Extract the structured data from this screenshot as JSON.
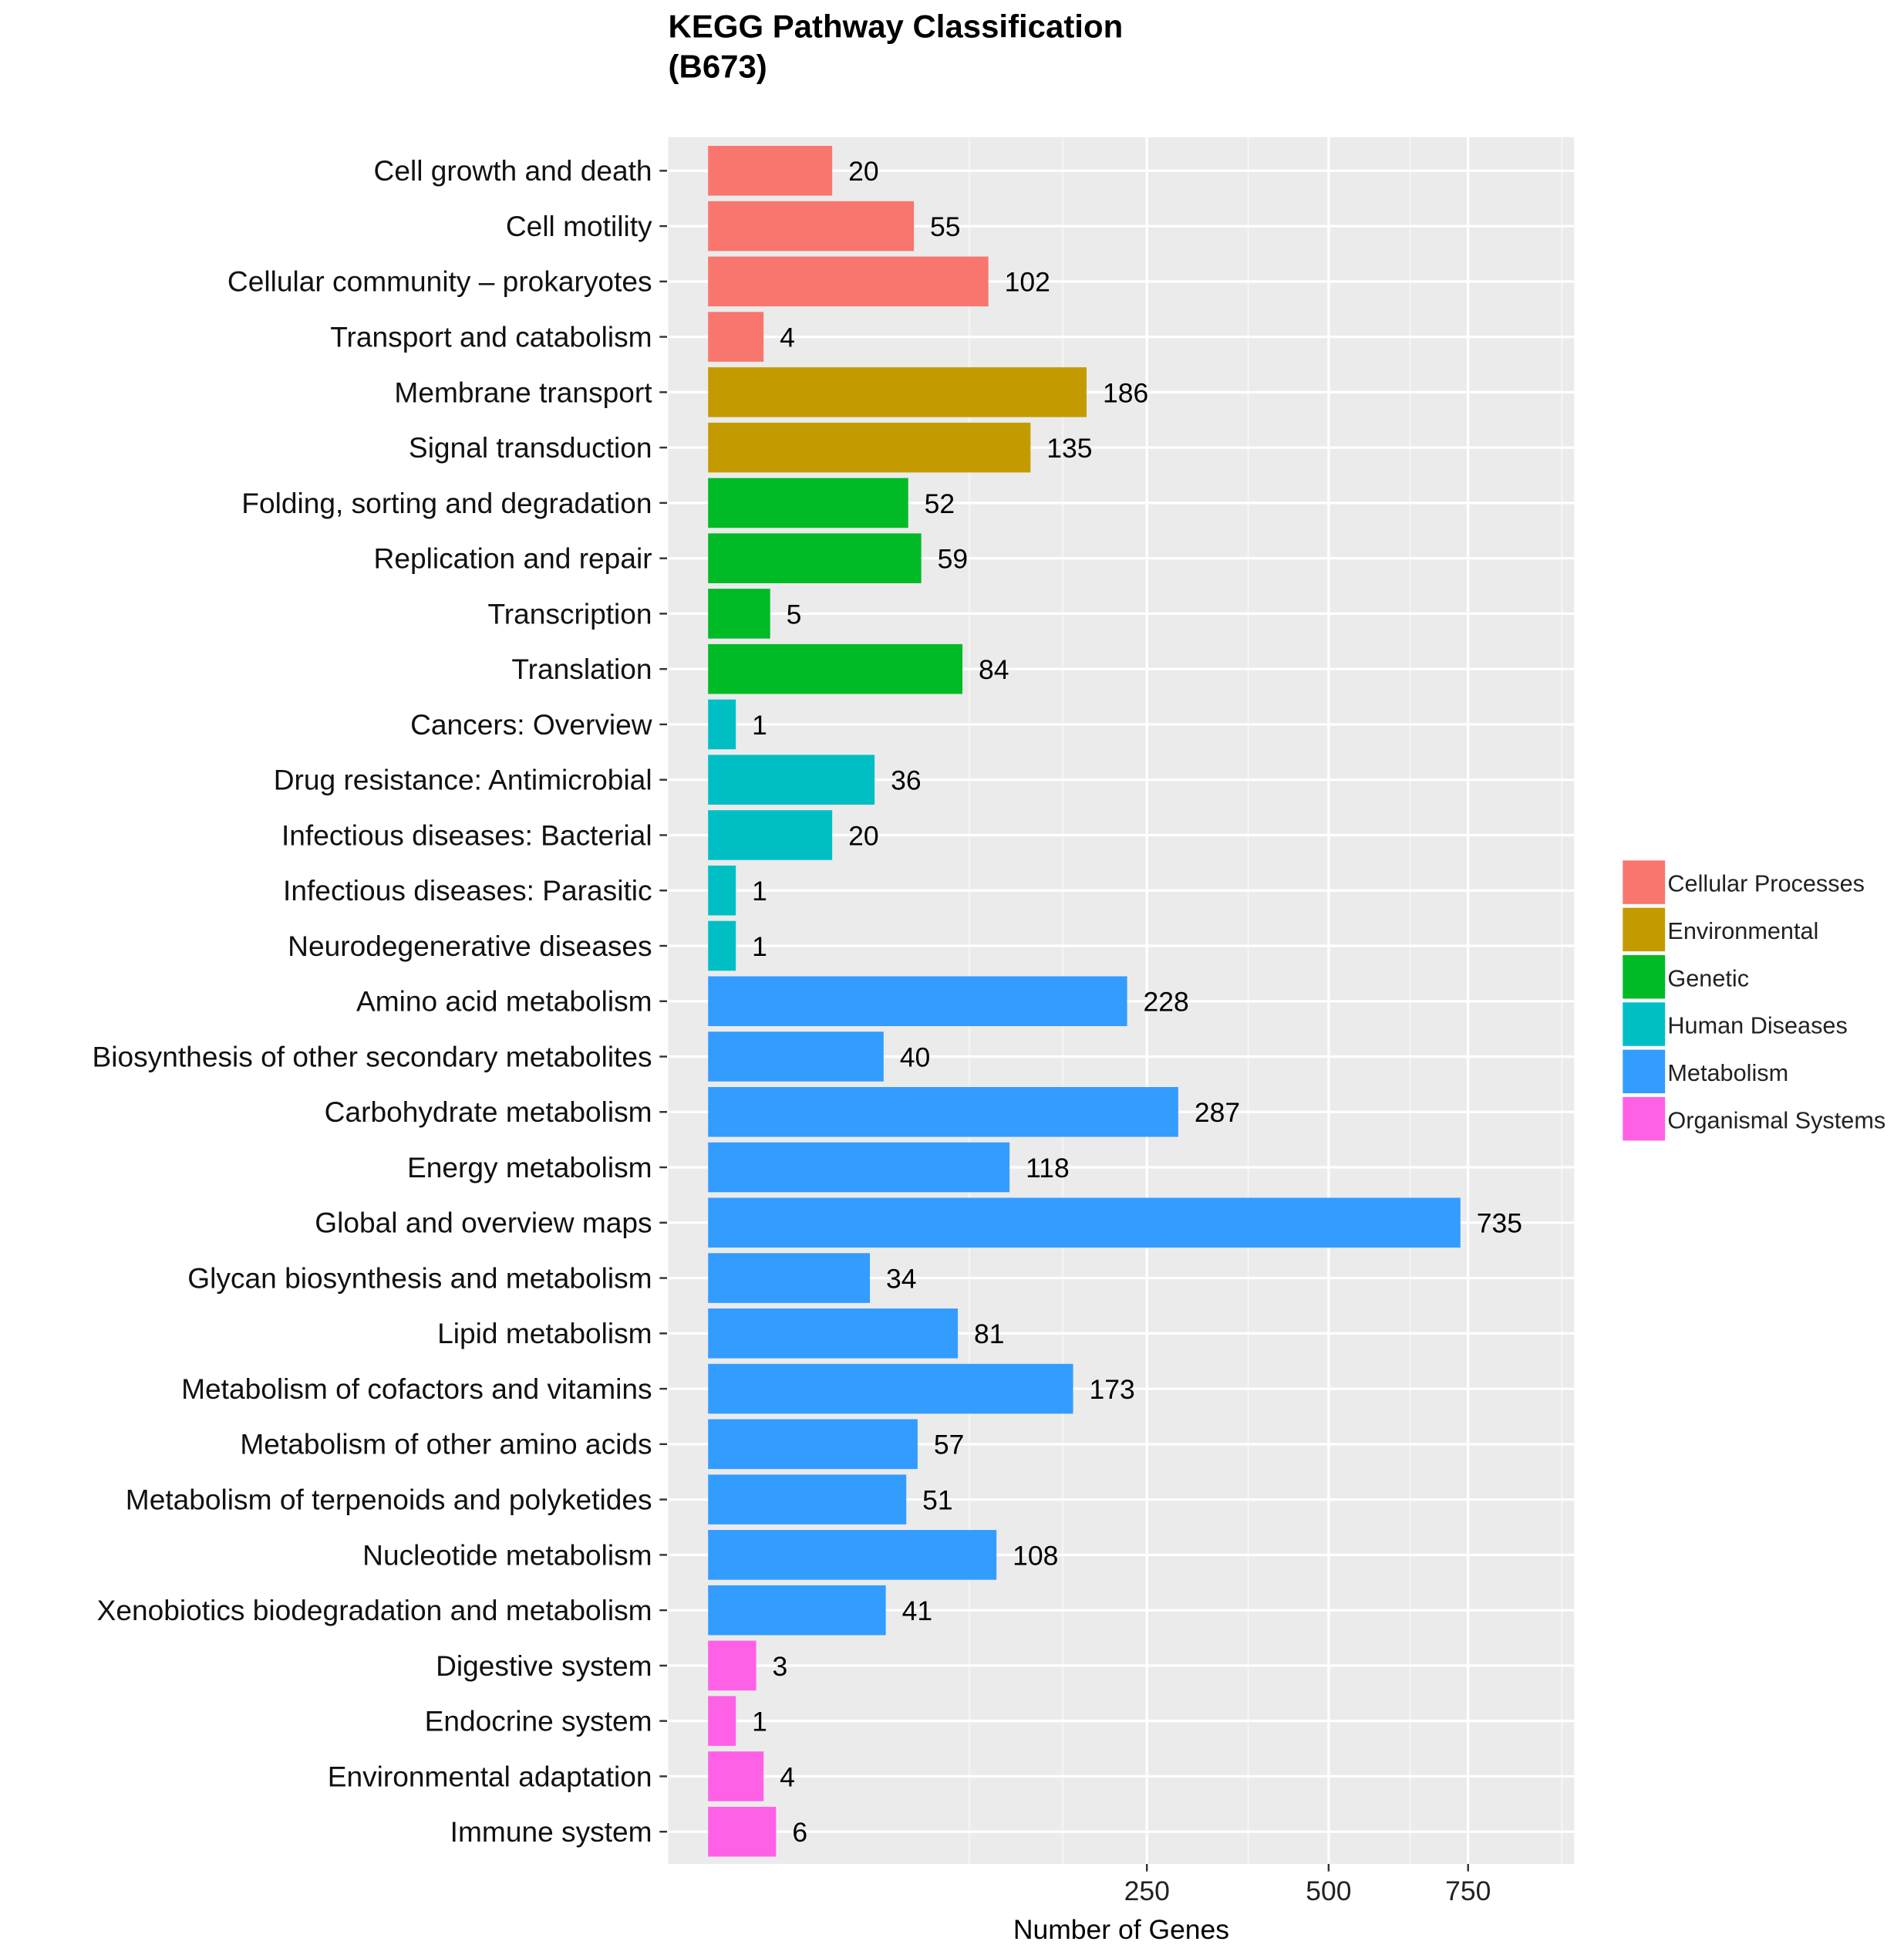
{
  "chart_data": {
    "type": "bar",
    "orientation": "horizontal",
    "title": "KEGG Pathway Classification",
    "subtitle": "(B673)",
    "xlabel": "Number of Genes",
    "ylabel": "",
    "x_scale": "sqrt",
    "xlim": [
      0,
      950
    ],
    "x_ticks": [
      250,
      500,
      750
    ],
    "grid": true,
    "legend_position": "right",
    "legend": [
      {
        "name": "Cellular Processes",
        "color": "#F8766D"
      },
      {
        "name": "Environmental",
        "color": "#C39B00"
      },
      {
        "name": "Genetic",
        "color": "#00BA26"
      },
      {
        "name": "Human Diseases",
        "color": "#00BFC4"
      },
      {
        "name": "Metabolism",
        "color": "#339CFF"
      },
      {
        "name": "Organismal Systems",
        "color": "#FF61E6"
      }
    ],
    "bars": [
      {
        "label": "Cell growth and death",
        "value": 20,
        "group": 0
      },
      {
        "label": "Cell motility",
        "value": 55,
        "group": 0
      },
      {
        "label": "Cellular community – prokaryotes",
        "value": 102,
        "group": 0
      },
      {
        "label": "Transport and catabolism",
        "value": 4,
        "group": 0
      },
      {
        "label": "Membrane transport",
        "value": 186,
        "group": 1
      },
      {
        "label": "Signal transduction",
        "value": 135,
        "group": 1
      },
      {
        "label": "Folding, sorting and degradation",
        "value": 52,
        "group": 2
      },
      {
        "label": "Replication and repair",
        "value": 59,
        "group": 2
      },
      {
        "label": "Transcription",
        "value": 5,
        "group": 2
      },
      {
        "label": "Translation",
        "value": 84,
        "group": 2
      },
      {
        "label": "Cancers: Overview",
        "value": 1,
        "group": 3
      },
      {
        "label": "Drug resistance: Antimicrobial",
        "value": 36,
        "group": 3
      },
      {
        "label": "Infectious diseases: Bacterial",
        "value": 20,
        "group": 3
      },
      {
        "label": "Infectious diseases: Parasitic",
        "value": 1,
        "group": 3
      },
      {
        "label": "Neurodegenerative diseases",
        "value": 1,
        "group": 3
      },
      {
        "label": "Amino acid metabolism",
        "value": 228,
        "group": 4
      },
      {
        "label": "Biosynthesis of other secondary metabolites",
        "value": 40,
        "group": 4
      },
      {
        "label": "Carbohydrate metabolism",
        "value": 287,
        "group": 4
      },
      {
        "label": "Energy metabolism",
        "value": 118,
        "group": 4
      },
      {
        "label": "Global and overview maps",
        "value": 735,
        "group": 4
      },
      {
        "label": "Glycan biosynthesis and metabolism",
        "value": 34,
        "group": 4
      },
      {
        "label": "Lipid metabolism",
        "value": 81,
        "group": 4
      },
      {
        "label": "Metabolism of cofactors and vitamins",
        "value": 173,
        "group": 4
      },
      {
        "label": "Metabolism of other amino acids",
        "value": 57,
        "group": 4
      },
      {
        "label": "Metabolism of terpenoids and polyketides",
        "value": 51,
        "group": 4
      },
      {
        "label": "Nucleotide metabolism",
        "value": 108,
        "group": 4
      },
      {
        "label": "Xenobiotics biodegradation and metabolism",
        "value": 41,
        "group": 4
      },
      {
        "label": "Digestive system",
        "value": 3,
        "group": 5
      },
      {
        "label": "Endocrine system",
        "value": 1,
        "group": 5
      },
      {
        "label": "Environmental adaptation",
        "value": 4,
        "group": 5
      },
      {
        "label": "Immune system",
        "value": 6,
        "group": 5
      }
    ]
  }
}
